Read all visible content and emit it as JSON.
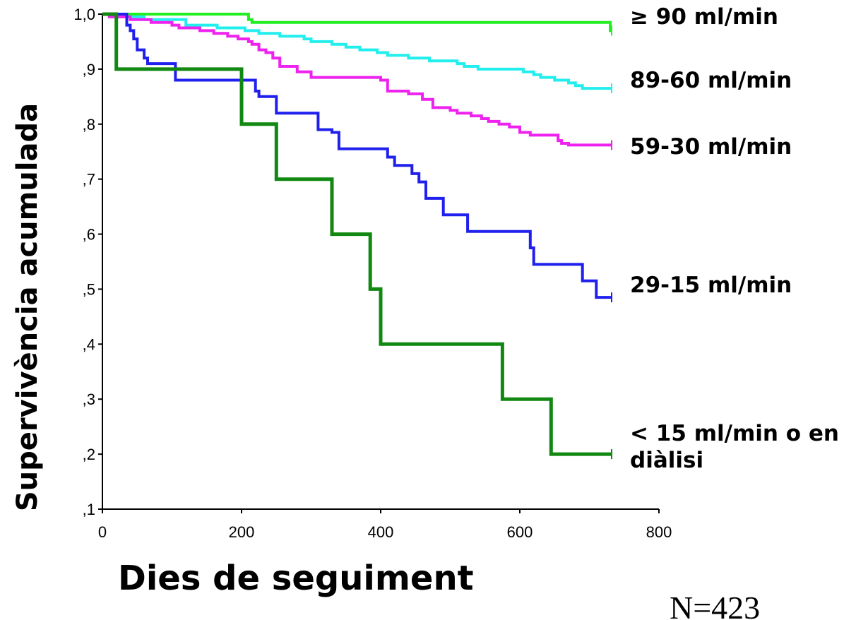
{
  "chart_data": {
    "type": "line",
    "step": true,
    "xlabel": "Dies de seguiment",
    "ylabel": "Supervivència acumulada",
    "xlim": [
      0,
      800
    ],
    "ylim": [
      0.1,
      1.0
    ],
    "x_ticks": [
      0,
      200,
      400,
      600,
      800
    ],
    "x_tick_labels": [
      "0",
      "200",
      "400",
      "600",
      "800"
    ],
    "y_ticks": [
      0.1,
      0.2,
      0.3,
      0.4,
      0.5,
      0.6,
      0.7,
      0.8,
      0.9,
      1.0
    ],
    "y_tick_labels": [
      ",1",
      ",2",
      ",3",
      ",4",
      ",5",
      ",6",
      ",7",
      ",8",
      ",9",
      "1,0"
    ],
    "grid": false,
    "legend": "inline-right",
    "note": "N=423",
    "series": [
      {
        "name": "≥ 90 ml/min",
        "color": "#22ee22",
        "censored_end": true,
        "points": [
          [
            0,
            1.0
          ],
          [
            210,
            1.0
          ],
          [
            210,
            0.99
          ],
          [
            215,
            0.99
          ],
          [
            215,
            0.985
          ],
          [
            730,
            0.985
          ],
          [
            730,
            0.97
          ],
          [
            732,
            0.97
          ]
        ]
      },
      {
        "name": "89-60 ml/min",
        "color": "#22eeee",
        "censored_end": true,
        "points": [
          [
            0,
            1.0
          ],
          [
            20,
            1.0
          ],
          [
            20,
            0.995
          ],
          [
            60,
            0.995
          ],
          [
            60,
            0.99
          ],
          [
            120,
            0.99
          ],
          [
            120,
            0.98
          ],
          [
            165,
            0.98
          ],
          [
            165,
            0.975
          ],
          [
            205,
            0.975
          ],
          [
            205,
            0.97
          ],
          [
            225,
            0.97
          ],
          [
            225,
            0.965
          ],
          [
            255,
            0.965
          ],
          [
            255,
            0.96
          ],
          [
            290,
            0.96
          ],
          [
            290,
            0.955
          ],
          [
            300,
            0.955
          ],
          [
            300,
            0.95
          ],
          [
            330,
            0.95
          ],
          [
            330,
            0.945
          ],
          [
            350,
            0.945
          ],
          [
            350,
            0.94
          ],
          [
            370,
            0.94
          ],
          [
            370,
            0.935
          ],
          [
            395,
            0.935
          ],
          [
            395,
            0.93
          ],
          [
            410,
            0.93
          ],
          [
            410,
            0.925
          ],
          [
            440,
            0.925
          ],
          [
            440,
            0.92
          ],
          [
            470,
            0.92
          ],
          [
            470,
            0.915
          ],
          [
            510,
            0.915
          ],
          [
            510,
            0.91
          ],
          [
            520,
            0.91
          ],
          [
            520,
            0.905
          ],
          [
            540,
            0.905
          ],
          [
            540,
            0.9
          ],
          [
            605,
            0.9
          ],
          [
            605,
            0.895
          ],
          [
            620,
            0.895
          ],
          [
            620,
            0.89
          ],
          [
            630,
            0.89
          ],
          [
            630,
            0.885
          ],
          [
            650,
            0.885
          ],
          [
            650,
            0.88
          ],
          [
            670,
            0.88
          ],
          [
            670,
            0.875
          ],
          [
            680,
            0.875
          ],
          [
            680,
            0.87
          ],
          [
            690,
            0.87
          ],
          [
            690,
            0.865
          ],
          [
            732,
            0.865
          ]
        ]
      },
      {
        "name": "59-30 ml/min",
        "color": "#ee22ee",
        "censored_end": true,
        "points": [
          [
            0,
            1.0
          ],
          [
            10,
            1.0
          ],
          [
            10,
            0.995
          ],
          [
            40,
            0.995
          ],
          [
            40,
            0.99
          ],
          [
            70,
            0.99
          ],
          [
            70,
            0.985
          ],
          [
            100,
            0.985
          ],
          [
            100,
            0.98
          ],
          [
            110,
            0.98
          ],
          [
            110,
            0.975
          ],
          [
            140,
            0.975
          ],
          [
            140,
            0.97
          ],
          [
            160,
            0.97
          ],
          [
            160,
            0.965
          ],
          [
            180,
            0.965
          ],
          [
            180,
            0.96
          ],
          [
            195,
            0.96
          ],
          [
            195,
            0.955
          ],
          [
            210,
            0.955
          ],
          [
            210,
            0.95
          ],
          [
            215,
            0.95
          ],
          [
            215,
            0.945
          ],
          [
            225,
            0.945
          ],
          [
            225,
            0.935
          ],
          [
            235,
            0.935
          ],
          [
            235,
            0.93
          ],
          [
            245,
            0.93
          ],
          [
            245,
            0.92
          ],
          [
            255,
            0.92
          ],
          [
            255,
            0.905
          ],
          [
            280,
            0.905
          ],
          [
            280,
            0.895
          ],
          [
            300,
            0.895
          ],
          [
            300,
            0.885
          ],
          [
            360,
            0.885
          ],
          [
            360,
            0.885
          ],
          [
            400,
            0.885
          ],
          [
            400,
            0.88
          ],
          [
            410,
            0.88
          ],
          [
            410,
            0.86
          ],
          [
            440,
            0.86
          ],
          [
            440,
            0.855
          ],
          [
            460,
            0.855
          ],
          [
            460,
            0.845
          ],
          [
            475,
            0.845
          ],
          [
            475,
            0.83
          ],
          [
            500,
            0.83
          ],
          [
            500,
            0.825
          ],
          [
            510,
            0.825
          ],
          [
            510,
            0.82
          ],
          [
            530,
            0.82
          ],
          [
            530,
            0.815
          ],
          [
            545,
            0.815
          ],
          [
            545,
            0.81
          ],
          [
            555,
            0.81
          ],
          [
            555,
            0.805
          ],
          [
            570,
            0.805
          ],
          [
            570,
            0.8
          ],
          [
            585,
            0.8
          ],
          [
            585,
            0.795
          ],
          [
            600,
            0.795
          ],
          [
            600,
            0.785
          ],
          [
            615,
            0.785
          ],
          [
            615,
            0.78
          ],
          [
            655,
            0.78
          ],
          [
            655,
            0.77
          ],
          [
            660,
            0.77
          ],
          [
            660,
            0.765
          ],
          [
            670,
            0.765
          ],
          [
            670,
            0.762
          ],
          [
            732,
            0.762
          ]
        ]
      },
      {
        "name": "29-15 ml/min",
        "color": "#2020ee",
        "censored_end": true,
        "points": [
          [
            0,
            1.0
          ],
          [
            35,
            1.0
          ],
          [
            35,
            0.98
          ],
          [
            40,
            0.98
          ],
          [
            40,
            0.97
          ],
          [
            45,
            0.97
          ],
          [
            45,
            0.955
          ],
          [
            50,
            0.955
          ],
          [
            50,
            0.935
          ],
          [
            60,
            0.935
          ],
          [
            60,
            0.92
          ],
          [
            65,
            0.92
          ],
          [
            65,
            0.91
          ],
          [
            105,
            0.91
          ],
          [
            105,
            0.88
          ],
          [
            220,
            0.88
          ],
          [
            220,
            0.86
          ],
          [
            225,
            0.86
          ],
          [
            225,
            0.85
          ],
          [
            250,
            0.85
          ],
          [
            250,
            0.82
          ],
          [
            310,
            0.82
          ],
          [
            310,
            0.79
          ],
          [
            330,
            0.79
          ],
          [
            330,
            0.785
          ],
          [
            340,
            0.785
          ],
          [
            340,
            0.755
          ],
          [
            410,
            0.755
          ],
          [
            410,
            0.74
          ],
          [
            420,
            0.74
          ],
          [
            420,
            0.725
          ],
          [
            445,
            0.725
          ],
          [
            445,
            0.71
          ],
          [
            455,
            0.71
          ],
          [
            455,
            0.695
          ],
          [
            465,
            0.695
          ],
          [
            465,
            0.665
          ],
          [
            490,
            0.665
          ],
          [
            490,
            0.635
          ],
          [
            525,
            0.635
          ],
          [
            525,
            0.605
          ],
          [
            615,
            0.605
          ],
          [
            615,
            0.575
          ],
          [
            620,
            0.575
          ],
          [
            620,
            0.545
          ],
          [
            690,
            0.545
          ],
          [
            690,
            0.515
          ],
          [
            710,
            0.515
          ],
          [
            710,
            0.485
          ],
          [
            732,
            0.485
          ]
        ]
      },
      {
        "name": "< 15 ml/min o en diàlisi",
        "color": "#118811",
        "censored_end": true,
        "points": [
          [
            0,
            1.0
          ],
          [
            20,
            1.0
          ],
          [
            20,
            0.9
          ],
          [
            200,
            0.9
          ],
          [
            200,
            0.8
          ],
          [
            250,
            0.8
          ],
          [
            250,
            0.7
          ],
          [
            330,
            0.7
          ],
          [
            330,
            0.6
          ],
          [
            385,
            0.6
          ],
          [
            385,
            0.5
          ],
          [
            400,
            0.5
          ],
          [
            400,
            0.4
          ],
          [
            575,
            0.4
          ],
          [
            575,
            0.3
          ],
          [
            645,
            0.3
          ],
          [
            645,
            0.2
          ],
          [
            732,
            0.2
          ]
        ]
      }
    ]
  }
}
